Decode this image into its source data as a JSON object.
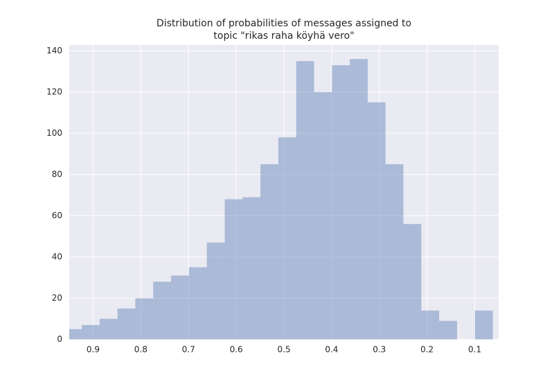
{
  "chart_data": {
    "type": "histogram",
    "title": [
      "Distribution of probabilities of messages assigned to",
      "topic \"rikas raha köyhä vero\""
    ],
    "bins": [
      0.0622,
      0.0997,
      0.1371,
      0.1746,
      0.212,
      0.2495,
      0.287,
      0.3244,
      0.3619,
      0.3993,
      0.4368,
      0.4743,
      0.5117,
      0.5492,
      0.5866,
      0.6241,
      0.6616,
      0.699,
      0.7365,
      0.7739,
      0.8114,
      0.8489,
      0.8863,
      0.9238,
      0.9612
    ],
    "values": [
      14,
      0,
      9,
      14,
      56,
      85,
      115,
      136,
      133,
      120,
      135,
      98,
      85,
      69,
      68,
      47,
      35,
      31,
      28,
      20,
      15,
      10,
      7,
      5
    ],
    "color": "#4c72b0",
    "opacity": 0.4,
    "xlim": [
      0.95,
      0.05
    ],
    "xticks": [
      0.9,
      0.8,
      0.7,
      0.6,
      0.5,
      0.4,
      0.3,
      0.2,
      0.1
    ],
    "ylim": [
      0,
      142.8
    ],
    "yticks": [
      0,
      20,
      40,
      60,
      80,
      100,
      120,
      140
    ],
    "grid": true
  }
}
